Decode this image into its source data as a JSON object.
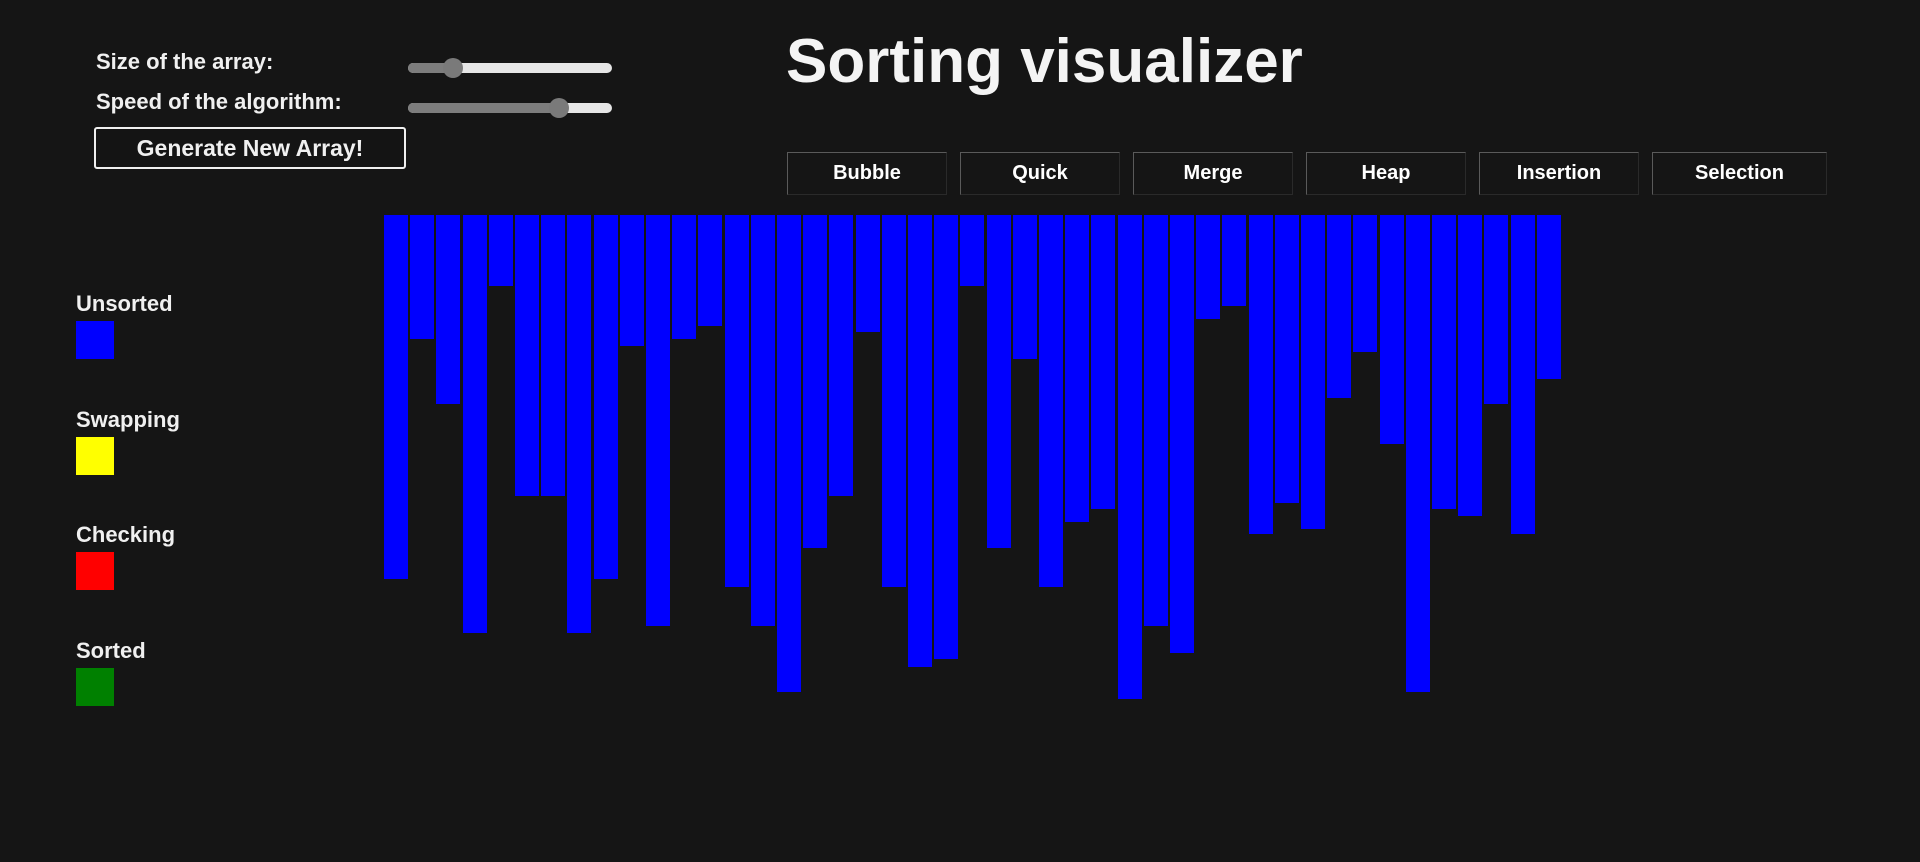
{
  "controls": {
    "size_label": "Size of the array:",
    "speed_label": "Speed of the algorithm:",
    "size_slider_value": 0.22,
    "speed_slider_value": 0.74,
    "generate_label": "Generate New Array!"
  },
  "title": "Sorting visualizer",
  "algorithms": [
    {
      "label": "Bubble"
    },
    {
      "label": "Quick"
    },
    {
      "label": "Merge"
    },
    {
      "label": "Heap"
    },
    {
      "label": "Insertion"
    },
    {
      "label": "Selection"
    }
  ],
  "legend": [
    {
      "label": "Unsorted",
      "color": "#0000ff"
    },
    {
      "label": "Swapping",
      "color": "#ffff00"
    },
    {
      "label": "Checking",
      "color": "#ff0000"
    },
    {
      "label": "Sorted",
      "color": "#008000"
    }
  ],
  "bar_color": "#0000ff",
  "chart_data": {
    "type": "bar",
    "values": [
      364,
      124,
      189,
      418,
      71,
      281,
      281,
      418,
      364,
      131,
      411,
      124,
      111,
      372,
      411,
      477,
      333,
      281,
      117,
      372,
      452,
      444,
      71,
      333,
      144,
      372,
      307,
      294,
      484,
      411,
      438,
      104,
      91,
      319,
      288,
      314,
      183,
      137,
      229,
      477,
      294,
      301,
      189,
      319,
      164
    ]
  }
}
